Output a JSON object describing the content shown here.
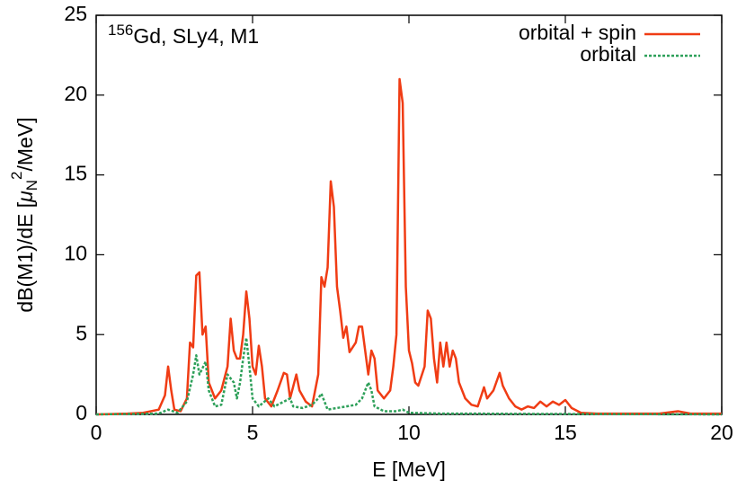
{
  "chart_data": {
    "type": "line",
    "title": {
      "superscript": "156",
      "text": "Gd, SLy4, M1"
    },
    "xlabel": "E [MeV]",
    "ylabel": {
      "prefix": "dB(M1)/dE  [",
      "symbol": "μ",
      "subscript": "N",
      "superscript": "2",
      "suffix": "/MeV]"
    },
    "xlim": [
      0,
      20
    ],
    "xticks": [
      0,
      5,
      10,
      15,
      20
    ],
    "ylim": [
      0,
      25
    ],
    "yticks": [
      0,
      5,
      10,
      15,
      20,
      25
    ],
    "legend": "top-right",
    "series": [
      {
        "name": "orbital + spin",
        "color": "#f03c14",
        "line_style": "solid",
        "x": [
          0,
          1,
          1.5,
          2.0,
          2.2,
          2.3,
          2.4,
          2.5,
          2.7,
          2.9,
          3.0,
          3.1,
          3.2,
          3.3,
          3.4,
          3.5,
          3.6,
          3.8,
          4.0,
          4.2,
          4.3,
          4.4,
          4.5,
          4.6,
          4.7,
          4.8,
          4.9,
          5.0,
          5.1,
          5.2,
          5.3,
          5.4,
          5.6,
          5.8,
          6.0,
          6.1,
          6.2,
          6.4,
          6.5,
          6.7,
          6.9,
          7.1,
          7.2,
          7.3,
          7.4,
          7.5,
          7.6,
          7.7,
          7.8,
          7.9,
          8.0,
          8.1,
          8.3,
          8.4,
          8.5,
          8.6,
          8.7,
          8.8,
          8.9,
          9.0,
          9.2,
          9.4,
          9.5,
          9.6,
          9.7,
          9.8,
          9.9,
          10.0,
          10.1,
          10.2,
          10.3,
          10.5,
          10.6,
          10.7,
          10.8,
          10.9,
          11.0,
          11.1,
          11.2,
          11.3,
          11.4,
          11.5,
          11.6,
          11.8,
          12.0,
          12.2,
          12.4,
          12.5,
          12.7,
          12.9,
          13.0,
          13.2,
          13.4,
          13.6,
          13.8,
          14.0,
          14.2,
          14.4,
          14.6,
          14.8,
          15.0,
          15.2,
          15.5,
          16,
          17,
          18,
          18.6,
          19,
          20
        ],
        "values": [
          0,
          0.05,
          0.1,
          0.3,
          1.2,
          3.0,
          1.5,
          0.3,
          0.2,
          1.0,
          4.5,
          4.2,
          8.7,
          8.9,
          5.0,
          5.5,
          2.0,
          1.0,
          1.5,
          3.0,
          6.0,
          4.0,
          3.5,
          3.5,
          5.0,
          7.7,
          6.0,
          3.0,
          2.5,
          4.3,
          3.0,
          1.0,
          0.5,
          1.5,
          2.6,
          2.5,
          1.0,
          2.5,
          1.5,
          0.8,
          0.5,
          2.5,
          8.6,
          8.0,
          9.2,
          14.6,
          13,
          8,
          6.5,
          4.8,
          5.5,
          3.9,
          4.5,
          5.5,
          5.5,
          4.0,
          2.5,
          4.0,
          3.5,
          1.5,
          1.0,
          1.5,
          3.0,
          5.0,
          21.0,
          19.5,
          8,
          4.0,
          3.2,
          2.0,
          1.8,
          3.0,
          6.5,
          6.0,
          3.5,
          2.0,
          4.5,
          3.0,
          4.5,
          3.0,
          4.0,
          3.5,
          2.0,
          1.0,
          0.6,
          0.5,
          1.7,
          1.0,
          1.5,
          2.6,
          1.8,
          1.0,
          0.5,
          0.3,
          0.5,
          0.4,
          0.8,
          0.5,
          0.8,
          0.6,
          0.9,
          0.4,
          0.1,
          0.05,
          0.05,
          0.05,
          0.2,
          0.05,
          0.05
        ]
      },
      {
        "name": "orbital",
        "color": "#2ea05a",
        "line_style": "dotted",
        "x": [
          0,
          2.0,
          2.3,
          2.6,
          2.9,
          3.1,
          3.2,
          3.3,
          3.5,
          3.6,
          3.8,
          4.0,
          4.2,
          4.4,
          4.5,
          4.6,
          4.7,
          4.8,
          4.9,
          5.0,
          5.2,
          5.5,
          5.7,
          6.0,
          6.2,
          6.3,
          6.6,
          6.9,
          7.1,
          7.2,
          7.4,
          7.7,
          8.0,
          8.3,
          8.5,
          8.7,
          8.8,
          8.9,
          9.2,
          9.6,
          9.8,
          10,
          11,
          12,
          14,
          16,
          20
        ],
        "values": [
          0,
          0.05,
          0.3,
          0.1,
          0.8,
          2.5,
          3.7,
          2.5,
          3.3,
          1.5,
          0.5,
          0.6,
          2.5,
          2.0,
          1.0,
          2.0,
          3.5,
          4.8,
          3.0,
          1.0,
          0.5,
          1.0,
          0.5,
          0.8,
          1.0,
          0.5,
          0.4,
          0.6,
          1.0,
          1.3,
          0.3,
          0.4,
          0.5,
          0.6,
          1.0,
          2.0,
          1.5,
          0.5,
          0.2,
          0.2,
          0.3,
          0.1,
          0.05,
          0.05,
          0.03,
          0.02,
          0
        ]
      }
    ]
  }
}
